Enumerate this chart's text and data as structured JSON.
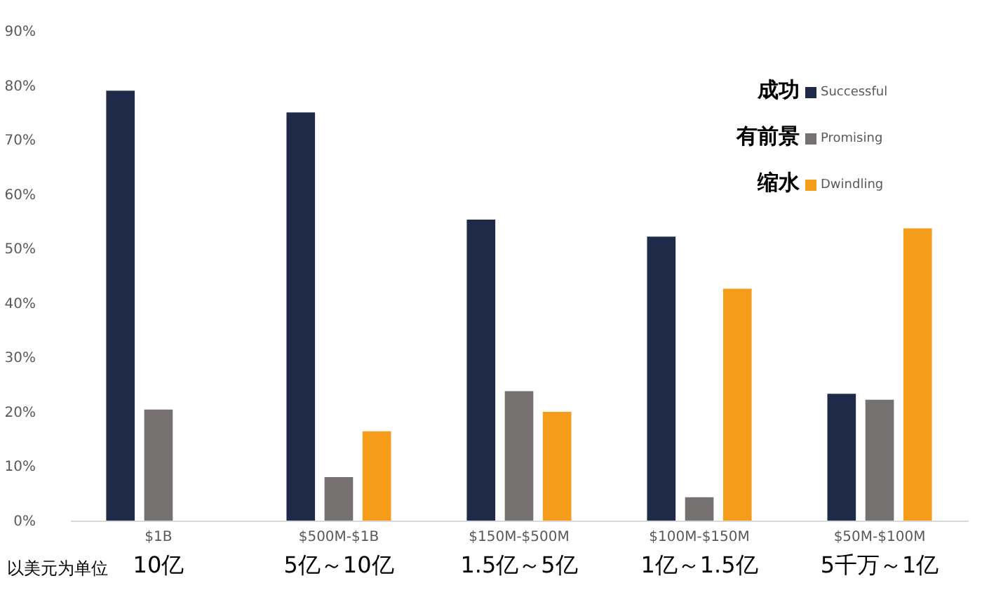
{
  "chart_data": {
    "type": "bar",
    "categories": [
      "$1B\n10亿",
      "$500M-$1B\n5亿～10亿",
      "$150M-$500M\n1.5亿～5亿",
      "$100M-$150M\n1亿～1.5亿",
      "$50M-$100M\n5千万～1亿"
    ],
    "series": [
      {
        "name": "Successful",
        "color": "#1f2a48",
        "values": [
          79,
          75,
          55.3,
          52.2,
          23.3
        ]
      },
      {
        "name": "Promising",
        "color": "#767171",
        "values": [
          20.4,
          8,
          23.8,
          4.3,
          22.2
        ]
      },
      {
        "name": "Dwindling",
        "color": "#f59c1a",
        "values": [
          null,
          16.4,
          20,
          42.6,
          53.7
        ]
      }
    ],
    "ylim": [
      0,
      90
    ],
    "yticks": [
      {
        "value": 0,
        "label": "0%"
      },
      {
        "value": 10,
        "label": "10%"
      },
      {
        "value": 20,
        "label": "20%"
      },
      {
        "value": 30,
        "label": "30%"
      },
      {
        "value": 40,
        "label": "40%"
      },
      {
        "value": 50,
        "label": "50%"
      },
      {
        "value": 60,
        "label": "60%"
      },
      {
        "value": 70,
        "label": "70%"
      },
      {
        "value": 80,
        "label": "80%"
      },
      {
        "value": 90,
        "label": "90%"
      }
    ],
    "grid": false,
    "legend": "top right",
    "annotations": [
      "成功",
      "有前景",
      "缩水",
      "以美元为单位"
    ]
  }
}
